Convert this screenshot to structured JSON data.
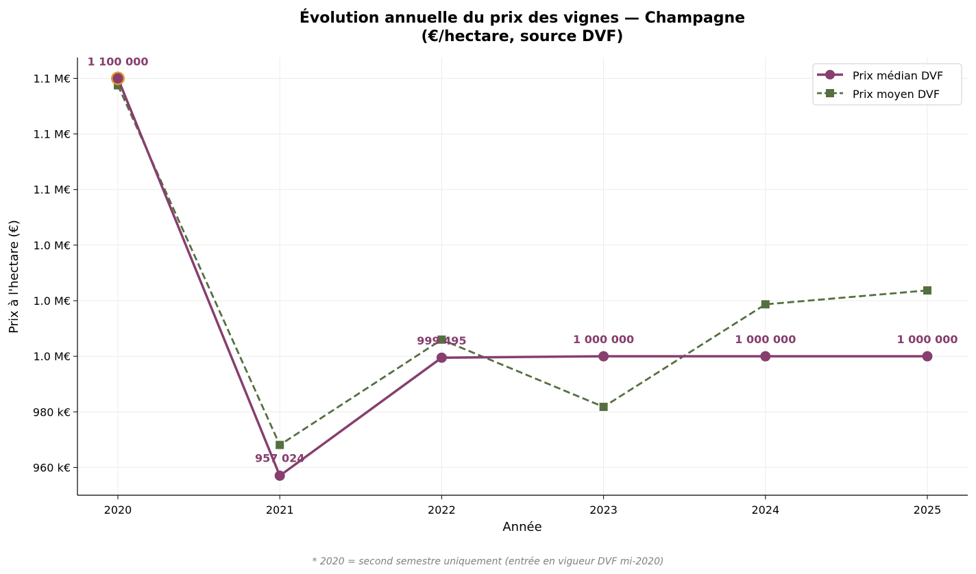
{
  "chart_data": {
    "type": "line",
    "title_line1": "Évolution annuelle du prix des vignes — Champagne",
    "title_line2": "(€/hectare, source DVF)",
    "xlabel": "Année",
    "ylabel": "Prix à l'hectare (€)",
    "x": [
      "2020",
      "2021",
      "2022",
      "2023",
      "2024",
      "2025"
    ],
    "ylim": [
      950000,
      1107500
    ],
    "yticks": [
      {
        "value": 960000,
        "label": "960 k€"
      },
      {
        "value": 980000,
        "label": "980 k€"
      },
      {
        "value": 1000000,
        "label": "1.0 M€"
      },
      {
        "value": 1020000,
        "label": "1.0 M€"
      },
      {
        "value": 1040000,
        "label": "1.0 M€"
      },
      {
        "value": 1060000,
        "label": "1.1 M€"
      },
      {
        "value": 1080000,
        "label": "1.1 M€"
      },
      {
        "value": 1100000,
        "label": "1.1 M€"
      }
    ],
    "grid": true,
    "legend_position": "top-right",
    "series": [
      {
        "name": "Prix médian DVF",
        "color": "#863f6e",
        "style": "solid",
        "marker": "circle",
        "values": [
          1100000,
          957024,
          999495,
          1000000,
          1000000,
          1000000
        ],
        "labels": [
          "1 100 000",
          "957 024",
          "999 495",
          "1 000 000",
          "1 000 000",
          "1 000 000"
        ]
      },
      {
        "name": "Prix moyen DVF",
        "color": "#557040",
        "style": "dashed",
        "marker": "square",
        "values": [
          1097500,
          968100,
          1006000,
          981800,
          1018700,
          1023700
        ]
      }
    ],
    "highlight": {
      "index": 0,
      "color": "#e49a2e"
    },
    "footnote": "* 2020 = second semestre uniquement (entrée en vigueur DVF mi-2020)"
  }
}
